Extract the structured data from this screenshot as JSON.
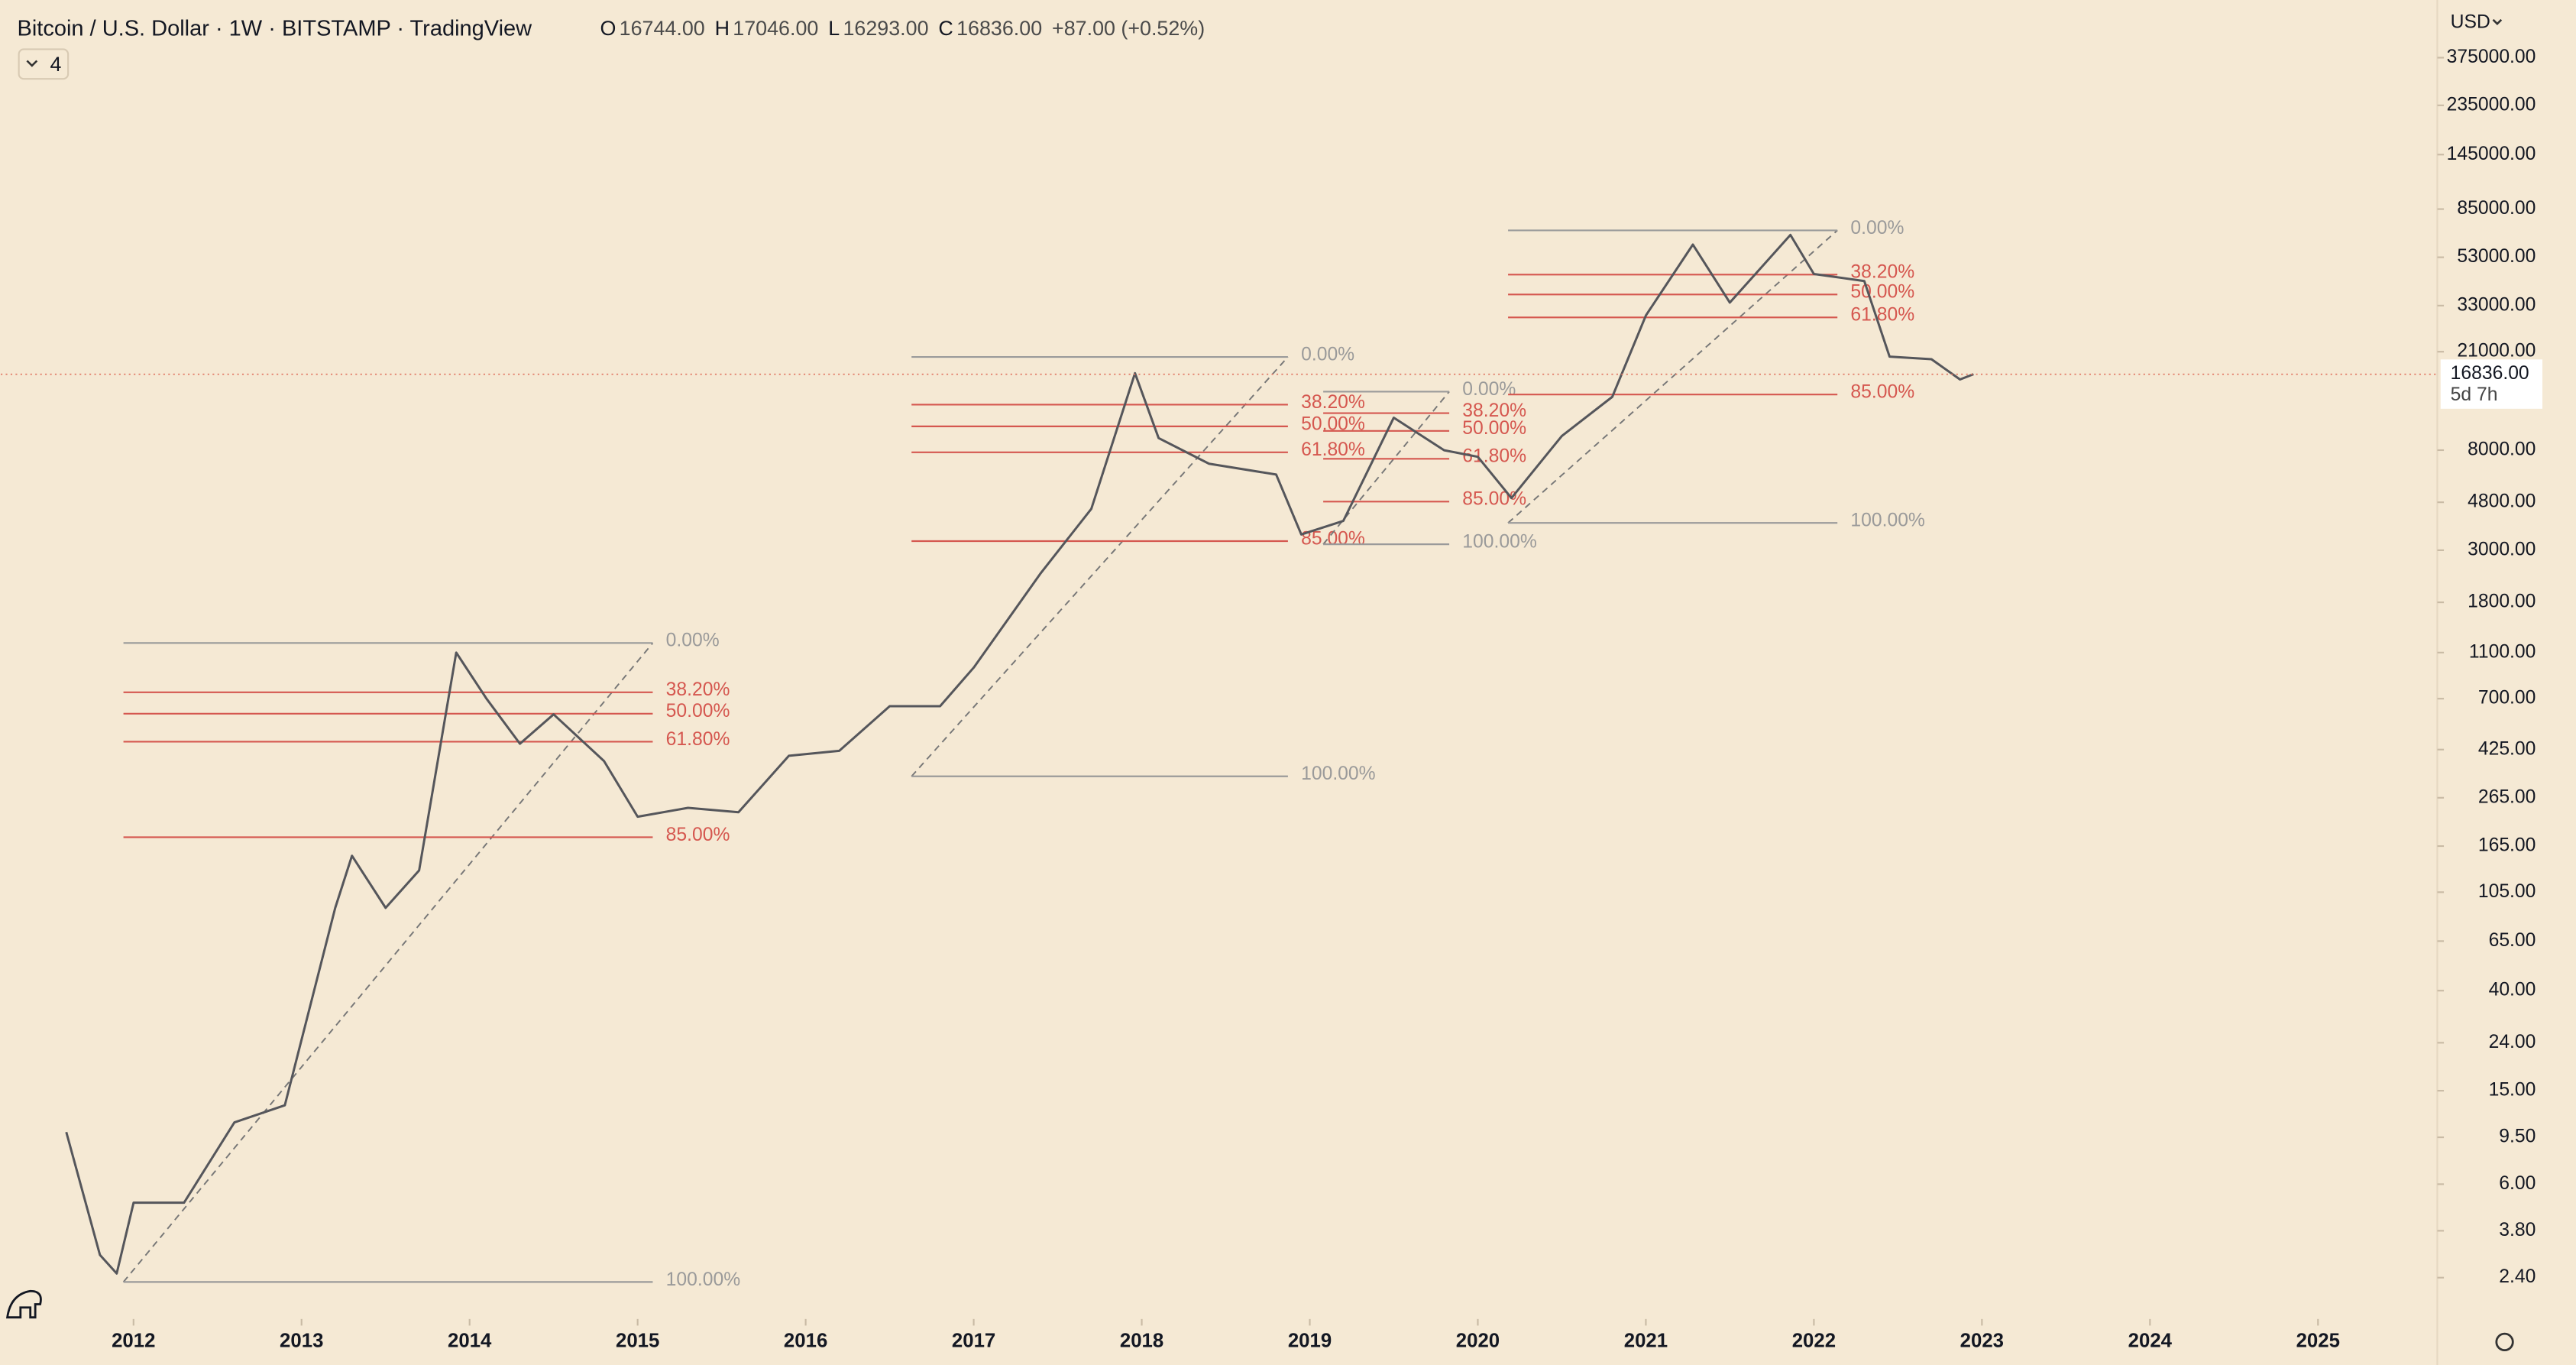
{
  "header": {
    "title": "Bitcoin / U.S. Dollar · 1W · BITSTAMP · TradingView",
    "ohlc": [
      {
        "key": "O",
        "value": "16744.00"
      },
      {
        "key": "H",
        "value": "17046.00"
      },
      {
        "key": "L",
        "value": "16293.00"
      },
      {
        "key": "C",
        "value": "16836.00"
      }
    ],
    "change": "+87.00 (+0.52%)",
    "indicators": "4",
    "currency": "USD"
  },
  "chart_data": {
    "type": "line",
    "color": "#55565b",
    "x": [
      2011.6,
      2011.8,
      2011.9,
      2012.0,
      2012.3,
      2012.6,
      2012.9,
      2013.2,
      2013.3,
      2013.5,
      2013.7,
      2013.92,
      2014.1,
      2014.3,
      2014.5,
      2014.8,
      2015.0,
      2015.3,
      2015.6,
      2015.9,
      2016.2,
      2016.5,
      2016.8,
      2017.0,
      2017.4,
      2017.7,
      2017.96,
      2018.1,
      2018.4,
      2018.8,
      2018.95,
      2019.2,
      2019.5,
      2019.8,
      2020.0,
      2020.2,
      2020.5,
      2020.8,
      2021.0,
      2021.28,
      2021.5,
      2021.86,
      2022.0,
      2022.3,
      2022.45,
      2022.7,
      2022.87,
      2022.95
    ],
    "values": [
      10,
      3,
      2.5,
      5,
      5,
      11,
      13,
      90,
      150,
      90,
      130,
      1100,
      700,
      450,
      600,
      380,
      220,
      240,
      230,
      400,
      420,
      650,
      650,
      950,
      2400,
      4500,
      17000,
      9000,
      7000,
      6300,
      3500,
      4000,
      11000,
      8000,
      7500,
      5000,
      9200,
      13500,
      30000,
      60000,
      34000,
      66000,
      45000,
      42000,
      20000,
      19500,
      16000,
      16836
    ],
    "log_scale": true,
    "xlim": [
      2011.21,
      2025.71
    ],
    "xticks": [
      2012,
      2013,
      2014,
      2015,
      2016,
      2017,
      2018,
      2019,
      2020,
      2021,
      2022,
      2023,
      2024,
      2025
    ],
    "ylim": [
      1.6,
      660000
    ],
    "yticks": [
      {
        "value": 375000,
        "label": "375000.00"
      },
      {
        "value": 235000,
        "label": "235000.00"
      },
      {
        "value": 145000,
        "label": "145000.00"
      },
      {
        "value": 85000,
        "label": "85000.00"
      },
      {
        "value": 53000,
        "label": "53000.00"
      },
      {
        "value": 33000,
        "label": "33000.00"
      },
      {
        "value": 21000,
        "label": "21000.00"
      },
      {
        "value": 8000,
        "label": "8000.00"
      },
      {
        "value": 4800,
        "label": "4800.00"
      },
      {
        "value": 3000,
        "label": "3000.00"
      },
      {
        "value": 1800,
        "label": "1800.00"
      },
      {
        "value": 1100,
        "label": "1100.00"
      },
      {
        "value": 700,
        "label": "700.00"
      },
      {
        "value": 425,
        "label": "425.00"
      },
      {
        "value": 265,
        "label": "265.00"
      },
      {
        "value": 165,
        "label": "165.00"
      },
      {
        "value": 105,
        "label": "105.00"
      },
      {
        "value": 65,
        "label": "65.00"
      },
      {
        "value": 40,
        "label": "40.00"
      },
      {
        "value": 24,
        "label": "24.00"
      },
      {
        "value": 15,
        "label": "15.00"
      },
      {
        "value": 9.5,
        "label": "9.50"
      },
      {
        "value": 6,
        "label": "6.00"
      },
      {
        "value": 3.8,
        "label": "3.80"
      },
      {
        "value": 2.4,
        "label": "2.40"
      }
    ],
    "last_price": {
      "value": 16836,
      "label": "16836.00"
    },
    "countdown": "5d 7h",
    "fib_line_color": "#d5574f",
    "fib_edge_color": "#9a9a9a",
    "fibs": [
      {
        "x0": 2011.94,
        "x1": 2015.09,
        "levels": [
          {
            "value": 1208,
            "label": "0.00%"
          },
          {
            "value": 745,
            "label": "38.20%"
          },
          {
            "value": 604,
            "label": "50.00%"
          },
          {
            "value": 459,
            "label": "61.80%"
          },
          {
            "value": 180,
            "label": "85.00%"
          },
          {
            "value": 2.3,
            "label": "100.00%"
          }
        ]
      },
      {
        "x0": 2016.63,
        "x1": 2018.87,
        "levels": [
          {
            "value": 19950,
            "label": "0.00%"
          },
          {
            "value": 12500,
            "label": "38.20%"
          },
          {
            "value": 10100,
            "label": "50.00%"
          },
          {
            "value": 7830,
            "label": "61.80%"
          },
          {
            "value": 3280,
            "label": "85.00%"
          },
          {
            "value": 327,
            "label": "100.00%"
          }
        ]
      },
      {
        "x0": 2019.08,
        "x1": 2019.83,
        "levels": [
          {
            "value": 14200,
            "label": "0.00%"
          },
          {
            "value": 11500,
            "label": "38.20%"
          },
          {
            "value": 9660,
            "label": "50.00%"
          },
          {
            "value": 7350,
            "label": "61.80%"
          },
          {
            "value": 4830,
            "label": "85.00%"
          },
          {
            "value": 3180,
            "label": "100.00%"
          }
        ]
      },
      {
        "x0": 2020.18,
        "x1": 2022.14,
        "levels": [
          {
            "value": 69000,
            "label": "0.00%"
          },
          {
            "value": 44700,
            "label": "38.20%"
          },
          {
            "value": 36800,
            "label": "50.00%"
          },
          {
            "value": 29400,
            "label": "61.80%"
          },
          {
            "value": 13800,
            "label": "85.00%"
          },
          {
            "value": 3920,
            "label": "100.00%"
          }
        ]
      }
    ]
  }
}
